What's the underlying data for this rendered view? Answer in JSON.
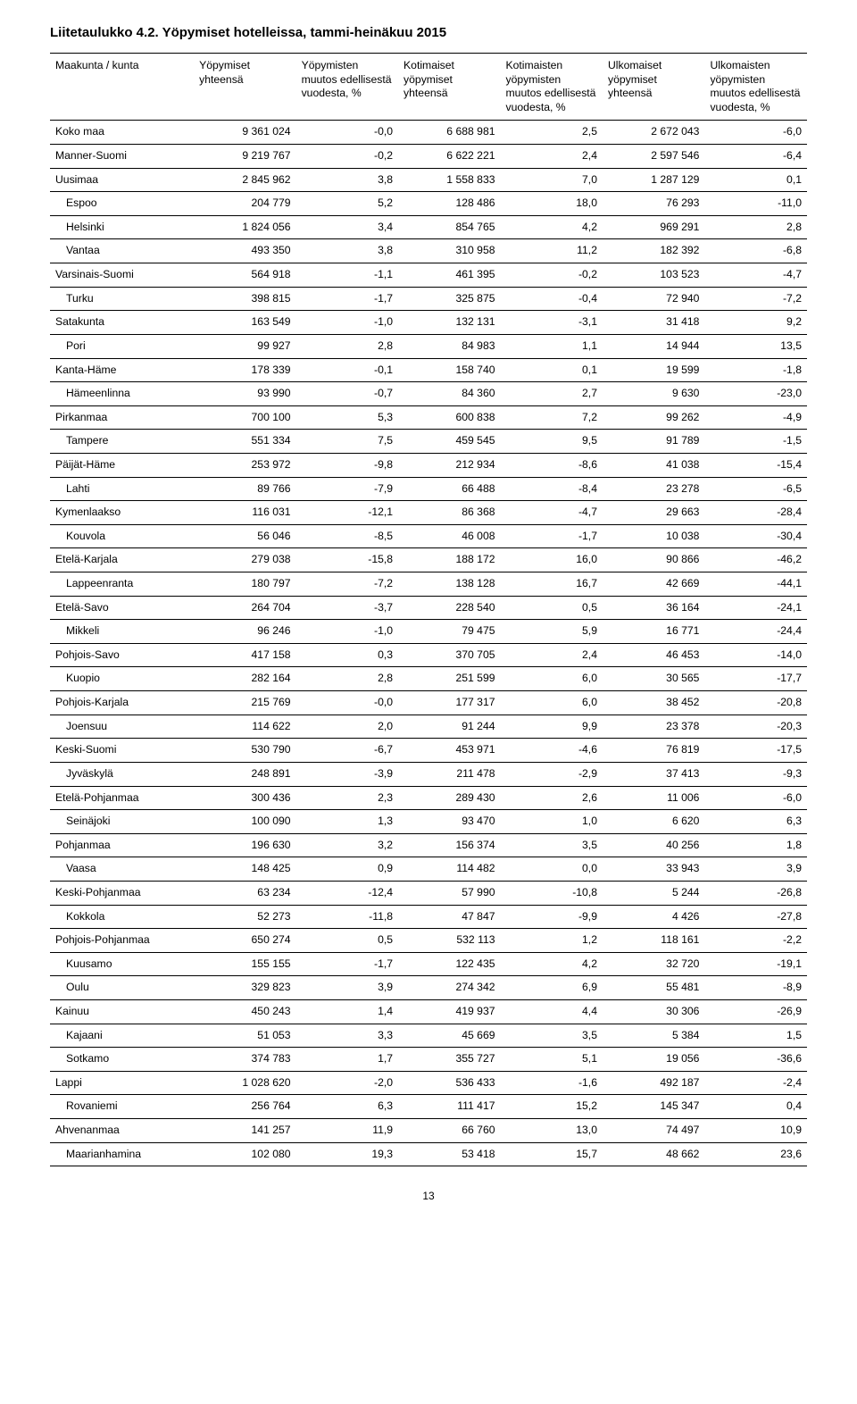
{
  "title": "Liitetaulukko 4.2. Yöpymiset hotelleissa, tammi-heinäkuu 2015",
  "page_number": "13",
  "columns": [
    "Maakunta / kunta",
    "Yöpymiset yhteensä",
    "Yöpymisten muutos edellisestä vuodesta, %",
    "Kotimaiset yöpymiset yhteensä",
    "Kotimaisten yöpymisten muutos edellisestä vuodesta, %",
    "Ulkomaiset yöpymiset yhteensä",
    "Ulkomaisten yöpymisten muutos edellisestä vuodesta, %"
  ],
  "rows": [
    {
      "region": "Koko maa",
      "indent": false,
      "v": [
        "9 361 024",
        "-0,0",
        "6 688 981",
        "2,5",
        "2 672 043",
        "-6,0"
      ]
    },
    {
      "region": "Manner-Suomi",
      "indent": false,
      "v": [
        "9 219 767",
        "-0,2",
        "6 622 221",
        "2,4",
        "2 597 546",
        "-6,4"
      ]
    },
    {
      "region": "Uusimaa",
      "indent": false,
      "v": [
        "2 845 962",
        "3,8",
        "1 558 833",
        "7,0",
        "1 287 129",
        "0,1"
      ]
    },
    {
      "region": "Espoo",
      "indent": true,
      "v": [
        "204 779",
        "5,2",
        "128 486",
        "18,0",
        "76 293",
        "-11,0"
      ]
    },
    {
      "region": "Helsinki",
      "indent": true,
      "v": [
        "1 824 056",
        "3,4",
        "854 765",
        "4,2",
        "969 291",
        "2,8"
      ]
    },
    {
      "region": "Vantaa",
      "indent": true,
      "v": [
        "493 350",
        "3,8",
        "310 958",
        "11,2",
        "182 392",
        "-6,8"
      ]
    },
    {
      "region": "Varsinais-Suomi",
      "indent": false,
      "v": [
        "564 918",
        "-1,1",
        "461 395",
        "-0,2",
        "103 523",
        "-4,7"
      ]
    },
    {
      "region": "Turku",
      "indent": true,
      "v": [
        "398 815",
        "-1,7",
        "325 875",
        "-0,4",
        "72 940",
        "-7,2"
      ]
    },
    {
      "region": "Satakunta",
      "indent": false,
      "v": [
        "163 549",
        "-1,0",
        "132 131",
        "-3,1",
        "31 418",
        "9,2"
      ]
    },
    {
      "region": "Pori",
      "indent": true,
      "v": [
        "99 927",
        "2,8",
        "84 983",
        "1,1",
        "14 944",
        "13,5"
      ]
    },
    {
      "region": "Kanta-Häme",
      "indent": false,
      "v": [
        "178 339",
        "-0,1",
        "158 740",
        "0,1",
        "19 599",
        "-1,8"
      ]
    },
    {
      "region": "Hämeenlinna",
      "indent": true,
      "v": [
        "93 990",
        "-0,7",
        "84 360",
        "2,7",
        "9 630",
        "-23,0"
      ]
    },
    {
      "region": "Pirkanmaa",
      "indent": false,
      "v": [
        "700 100",
        "5,3",
        "600 838",
        "7,2",
        "99 262",
        "-4,9"
      ]
    },
    {
      "region": "Tampere",
      "indent": true,
      "v": [
        "551 334",
        "7,5",
        "459 545",
        "9,5",
        "91 789",
        "-1,5"
      ]
    },
    {
      "region": "Päijät-Häme",
      "indent": false,
      "v": [
        "253 972",
        "-9,8",
        "212 934",
        "-8,6",
        "41 038",
        "-15,4"
      ]
    },
    {
      "region": "Lahti",
      "indent": true,
      "v": [
        "89 766",
        "-7,9",
        "66 488",
        "-8,4",
        "23 278",
        "-6,5"
      ]
    },
    {
      "region": "Kymenlaakso",
      "indent": false,
      "v": [
        "116 031",
        "-12,1",
        "86 368",
        "-4,7",
        "29 663",
        "-28,4"
      ]
    },
    {
      "region": "Kouvola",
      "indent": true,
      "v": [
        "56 046",
        "-8,5",
        "46 008",
        "-1,7",
        "10 038",
        "-30,4"
      ]
    },
    {
      "region": "Etelä-Karjala",
      "indent": false,
      "v": [
        "279 038",
        "-15,8",
        "188 172",
        "16,0",
        "90 866",
        "-46,2"
      ]
    },
    {
      "region": "Lappeenranta",
      "indent": true,
      "v": [
        "180 797",
        "-7,2",
        "138 128",
        "16,7",
        "42 669",
        "-44,1"
      ]
    },
    {
      "region": "Etelä-Savo",
      "indent": false,
      "v": [
        "264 704",
        "-3,7",
        "228 540",
        "0,5",
        "36 164",
        "-24,1"
      ]
    },
    {
      "region": "Mikkeli",
      "indent": true,
      "v": [
        "96 246",
        "-1,0",
        "79 475",
        "5,9",
        "16 771",
        "-24,4"
      ]
    },
    {
      "region": "Pohjois-Savo",
      "indent": false,
      "v": [
        "417 158",
        "0,3",
        "370 705",
        "2,4",
        "46 453",
        "-14,0"
      ]
    },
    {
      "region": "Kuopio",
      "indent": true,
      "v": [
        "282 164",
        "2,8",
        "251 599",
        "6,0",
        "30 565",
        "-17,7"
      ]
    },
    {
      "region": "Pohjois-Karjala",
      "indent": false,
      "v": [
        "215 769",
        "-0,0",
        "177 317",
        "6,0",
        "38 452",
        "-20,8"
      ]
    },
    {
      "region": "Joensuu",
      "indent": true,
      "v": [
        "114 622",
        "2,0",
        "91 244",
        "9,9",
        "23 378",
        "-20,3"
      ]
    },
    {
      "region": "Keski-Suomi",
      "indent": false,
      "v": [
        "530 790",
        "-6,7",
        "453 971",
        "-4,6",
        "76 819",
        "-17,5"
      ]
    },
    {
      "region": "Jyväskylä",
      "indent": true,
      "v": [
        "248 891",
        "-3,9",
        "211 478",
        "-2,9",
        "37 413",
        "-9,3"
      ]
    },
    {
      "region": "Etelä-Pohjanmaa",
      "indent": false,
      "v": [
        "300 436",
        "2,3",
        "289 430",
        "2,6",
        "11 006",
        "-6,0"
      ]
    },
    {
      "region": "Seinäjoki",
      "indent": true,
      "v": [
        "100 090",
        "1,3",
        "93 470",
        "1,0",
        "6 620",
        "6,3"
      ]
    },
    {
      "region": "Pohjanmaa",
      "indent": false,
      "v": [
        "196 630",
        "3,2",
        "156 374",
        "3,5",
        "40 256",
        "1,8"
      ]
    },
    {
      "region": "Vaasa",
      "indent": true,
      "v": [
        "148 425",
        "0,9",
        "114 482",
        "0,0",
        "33 943",
        "3,9"
      ]
    },
    {
      "region": "Keski-Pohjanmaa",
      "indent": false,
      "v": [
        "63 234",
        "-12,4",
        "57 990",
        "-10,8",
        "5 244",
        "-26,8"
      ]
    },
    {
      "region": "Kokkola",
      "indent": true,
      "v": [
        "52 273",
        "-11,8",
        "47 847",
        "-9,9",
        "4 426",
        "-27,8"
      ]
    },
    {
      "region": "Pohjois-Pohjanmaa",
      "indent": false,
      "v": [
        "650 274",
        "0,5",
        "532 113",
        "1,2",
        "118 161",
        "-2,2"
      ]
    },
    {
      "region": "Kuusamo",
      "indent": true,
      "v": [
        "155 155",
        "-1,7",
        "122 435",
        "4,2",
        "32 720",
        "-19,1"
      ]
    },
    {
      "region": "Oulu",
      "indent": true,
      "v": [
        "329 823",
        "3,9",
        "274 342",
        "6,9",
        "55 481",
        "-8,9"
      ]
    },
    {
      "region": "Kainuu",
      "indent": false,
      "v": [
        "450 243",
        "1,4",
        "419 937",
        "4,4",
        "30 306",
        "-26,9"
      ]
    },
    {
      "region": "Kajaani",
      "indent": true,
      "v": [
        "51 053",
        "3,3",
        "45 669",
        "3,5",
        "5 384",
        "1,5"
      ]
    },
    {
      "region": "Sotkamo",
      "indent": true,
      "v": [
        "374 783",
        "1,7",
        "355 727",
        "5,1",
        "19 056",
        "-36,6"
      ]
    },
    {
      "region": "Lappi",
      "indent": false,
      "v": [
        "1 028 620",
        "-2,0",
        "536 433",
        "-1,6",
        "492 187",
        "-2,4"
      ]
    },
    {
      "region": "Rovaniemi",
      "indent": true,
      "v": [
        "256 764",
        "6,3",
        "111 417",
        "15,2",
        "145 347",
        "0,4"
      ]
    },
    {
      "region": "Ahvenanmaa",
      "indent": false,
      "v": [
        "141 257",
        "11,9",
        "66 760",
        "13,0",
        "74 497",
        "10,9"
      ]
    },
    {
      "region": "Maarianhamina",
      "indent": true,
      "v": [
        "102 080",
        "19,3",
        "53 418",
        "15,7",
        "48 662",
        "23,6"
      ]
    }
  ]
}
